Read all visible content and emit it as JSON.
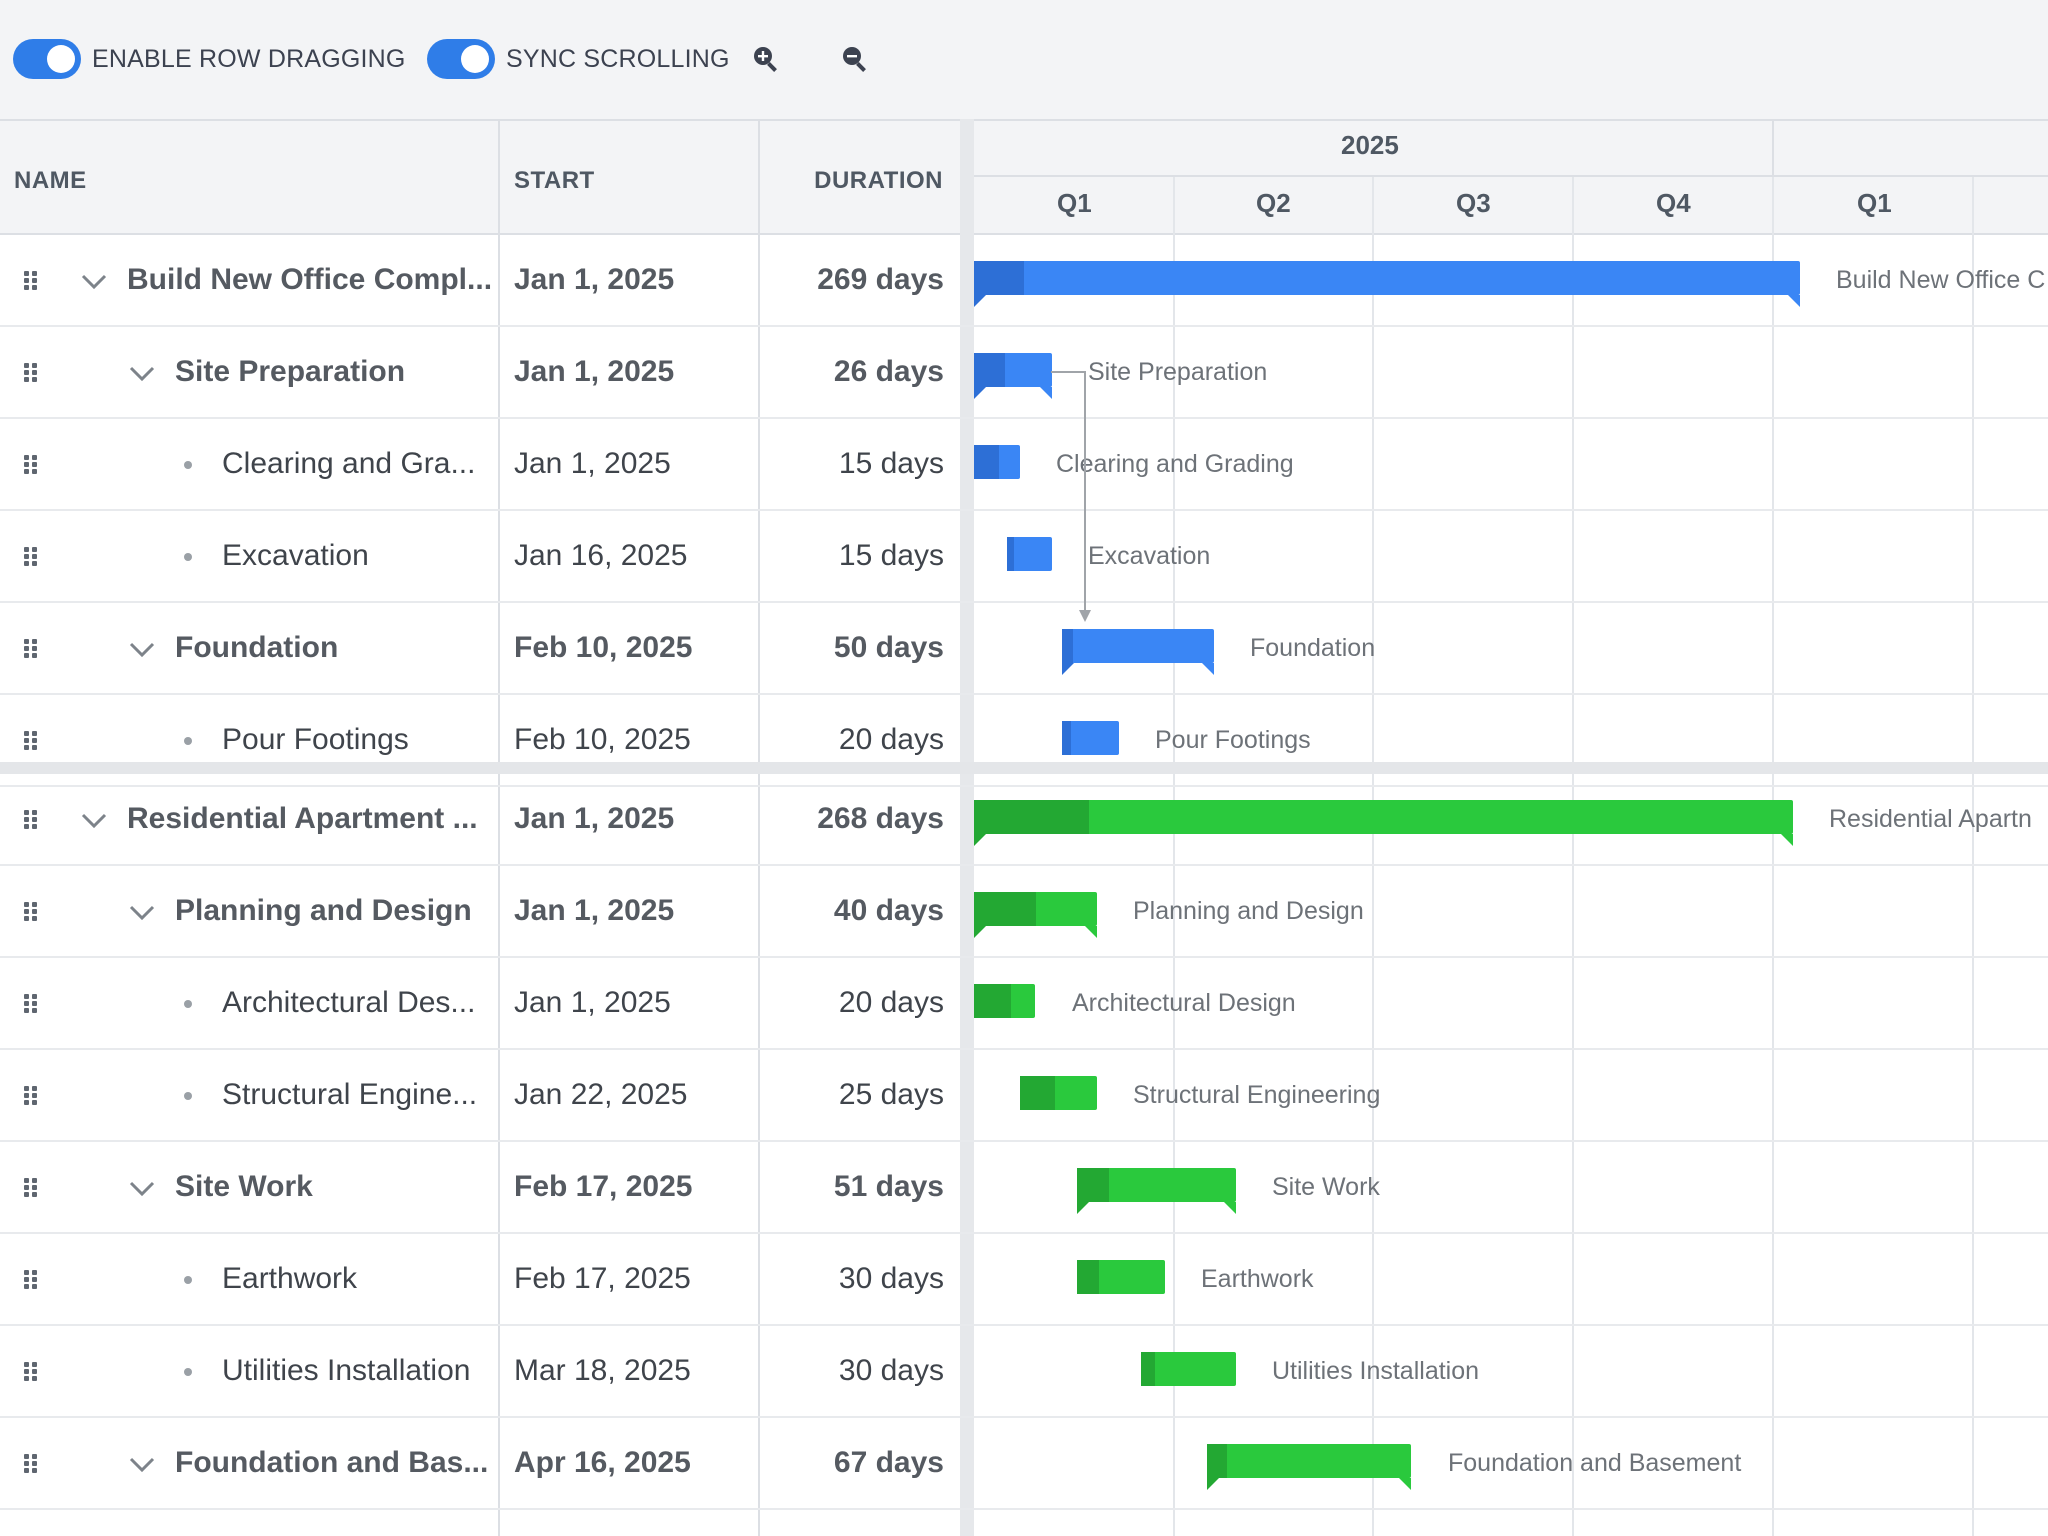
{
  "toolbar": {
    "row_dragging_label": "ENABLE ROW DRAGGING",
    "sync_scrolling_label": "SYNC SCROLLING",
    "zoom_in_icon": "zoom-in-icon",
    "zoom_out_icon": "zoom-out-icon"
  },
  "columns": {
    "name": "NAME",
    "start": "START",
    "duration": "DURATION"
  },
  "timeline": {
    "year": "2025",
    "quarters": [
      "Q1",
      "Q2",
      "Q3",
      "Q4",
      "Q1"
    ]
  },
  "colors": {
    "blue": "#3a86f5",
    "blue_progress": "#2d6fd6",
    "green": "#2ac93d",
    "green_progress": "#23a833",
    "accent": "#2f7de8"
  },
  "projects": [
    {
      "rows": [
        {
          "name": "Build New Office Compl...",
          "start": "Jan 1, 2025",
          "duration": "269 days",
          "bar_label": "Build New Office C",
          "level": 0
        },
        {
          "name": "Site Preparation",
          "start": "Jan 1, 2025",
          "duration": "26 days",
          "bar_label": "Site Preparation",
          "level": 1
        },
        {
          "name": "Clearing and Gra...",
          "start": "Jan 1, 2025",
          "duration": "15 days",
          "bar_label": "Clearing and Grading",
          "level": 2
        },
        {
          "name": "Excavation",
          "start": "Jan 16, 2025",
          "duration": "15 days",
          "bar_label": "Excavation",
          "level": 2
        },
        {
          "name": "Foundation",
          "start": "Feb 10, 2025",
          "duration": "50 days",
          "bar_label": "Foundation",
          "level": 1
        },
        {
          "name": "Pour Footings",
          "start": "Feb 10, 2025",
          "duration": "20 days",
          "bar_label": "Pour Footings",
          "level": 2
        }
      ]
    },
    {
      "rows": [
        {
          "name": "Residential Apartment ...",
          "start": "Jan 1, 2025",
          "duration": "268 days",
          "bar_label": "Residential Apartn",
          "level": 0
        },
        {
          "name": "Planning and Design",
          "start": "Jan 1, 2025",
          "duration": "40 days",
          "bar_label": "Planning and Design",
          "level": 1
        },
        {
          "name": "Architectural Des...",
          "start": "Jan 1, 2025",
          "duration": "20 days",
          "bar_label": "Architectural Design",
          "level": 2
        },
        {
          "name": "Structural Engine...",
          "start": "Jan 22, 2025",
          "duration": "25 days",
          "bar_label": "Structural Engineering",
          "level": 2
        },
        {
          "name": "Site Work",
          "start": "Feb 17, 2025",
          "duration": "51 days",
          "bar_label": "Site Work",
          "level": 1
        },
        {
          "name": "Earthwork",
          "start": "Feb 17, 2025",
          "duration": "30 days",
          "bar_label": "Earthwork",
          "level": 2
        },
        {
          "name": "Utilities Installation",
          "start": "Mar 18, 2025",
          "duration": "30 days",
          "bar_label": "Utilities Installation",
          "level": 2
        },
        {
          "name": "Foundation and Bas...",
          "start": "Apr 16, 2025",
          "duration": "67 days",
          "bar_label": "Foundation and Basement",
          "level": 1
        }
      ]
    }
  ]
}
